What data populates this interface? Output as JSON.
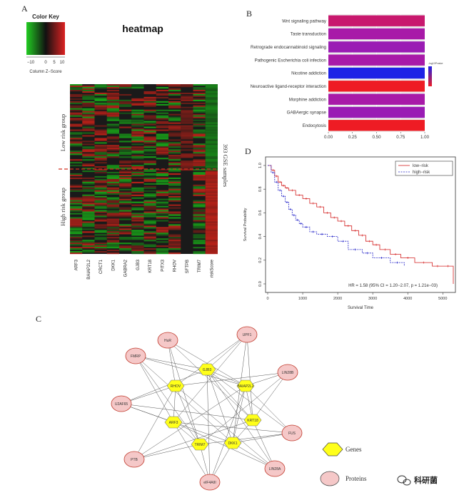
{
  "panels": {
    "a": "A",
    "b": "B",
    "c": "C",
    "d": "D"
  },
  "heatmap": {
    "title": "heatmap",
    "color_key_title": "Color Key",
    "color_key_ticks": [
      "−10",
      "0",
      "5",
      "10"
    ],
    "color_key_label": "Column Z−Score",
    "colors": {
      "low": "#22cc22",
      "mid": "#111111",
      "high": "#dd2222"
    },
    "row_groups": [
      "Low risk group",
      "High risk group"
    ],
    "side_label": "393 GSE samples",
    "columns": [
      "ARF3",
      "BAIAP2L2",
      "CRCT1",
      "DKK1",
      "GABRA2",
      "GJB3",
      "KRT18",
      "PITX3",
      "RHOV",
      "SFTPB",
      "TRIM7",
      "riskScore"
    ]
  },
  "enrichment": {
    "categories": [
      "Wnt signaling pathway",
      "Taste transduction",
      "Retrograde endocannabinoid signaling",
      "Pathogenic Escherichia coli infection",
      "Nicotine addiction",
      "Neuroactive ligand-receptor interaction",
      "Morphine addiction",
      "GABAergic synapse",
      "Endocytosis"
    ],
    "values": [
      1,
      1,
      1,
      1,
      1,
      1,
      1,
      1,
      1
    ],
    "bar_colors": [
      "#c8186e",
      "#a81aa8",
      "#9a1cb4",
      "#a81aa8",
      "#1e22e6",
      "#ee1c24",
      "#a81aa8",
      "#9a1cb4",
      "#ee1c24"
    ],
    "x_ticks": [
      "0.00",
      "0.25",
      "0.50",
      "0.75",
      "1.00"
    ],
    "legend_title": "-log10Pvalue",
    "legend_colors": [
      "#1e22e6",
      "#ee1c24"
    ]
  },
  "network": {
    "genes": [
      "GJB3",
      "RHOV",
      "BAIAP2L2",
      "ARF3",
      "KRT18",
      "TRIM7",
      "DKK1"
    ],
    "proteins": [
      "HuR",
      "UPF1",
      "FMRP",
      "LIN28B",
      "U2AF65",
      "FUS",
      "PTB",
      "LIN28A",
      "eIF4AIII"
    ],
    "legend": {
      "genes": "Genes",
      "proteins": "Proteins"
    },
    "gene_color": "#ffff1a",
    "protein_color": "#f5c8c8"
  },
  "survival": {
    "legend": [
      "low−risk",
      "high−risk"
    ],
    "colors": {
      "low": "#d42222",
      "high": "#2222c8"
    },
    "x_label": "Survival Time",
    "y_label": "Survival Probability",
    "x_ticks": [
      "0",
      "1000",
      "2000",
      "3000",
      "4000",
      "5000"
    ],
    "y_ticks": [
      "0.0",
      "0.2",
      "0.4",
      "0.6",
      "0.8",
      "1.0"
    ],
    "annotation": "HR = 1.58 (95% CI = 1.20−2.07, p = 1.21e−03)"
  },
  "chart_data": [
    {
      "type": "bar",
      "orientation": "horizontal",
      "categories": [
        "Wnt signaling pathway",
        "Taste transduction",
        "Retrograde endocannabinoid signaling",
        "Pathogenic Escherichia coli infection",
        "Nicotine addiction",
        "Neuroactive ligand-receptor interaction",
        "Morphine addiction",
        "GABAergic synapse",
        "Endocytosis"
      ],
      "values": [
        1,
        1,
        1,
        1,
        1,
        1,
        1,
        1,
        1
      ],
      "xlim": [
        0,
        1
      ],
      "xticks": [
        0,
        0.25,
        0.5,
        0.75,
        1.0
      ]
    },
    {
      "type": "line",
      "xlabel": "Survival Time",
      "ylabel": "Survival Probability",
      "xlim": [
        0,
        5300
      ],
      "ylim": [
        0,
        1
      ],
      "series": [
        {
          "name": "low−risk",
          "x": [
            0,
            100,
            200,
            300,
            400,
            500,
            600,
            800,
            1000,
            1200,
            1400,
            1600,
            1800,
            2000,
            2200,
            2400,
            2600,
            2800,
            3000,
            3200,
            3500,
            3800,
            4200,
            4700,
            5000,
            5300
          ],
          "y": [
            1.0,
            0.96,
            0.91,
            0.86,
            0.83,
            0.81,
            0.79,
            0.75,
            0.72,
            0.68,
            0.65,
            0.6,
            0.56,
            0.53,
            0.49,
            0.45,
            0.41,
            0.36,
            0.33,
            0.29,
            0.25,
            0.22,
            0.18,
            0.15,
            0.15,
            0.0
          ]
        },
        {
          "name": "high−risk",
          "x": [
            0,
            100,
            200,
            300,
            400,
            500,
            600,
            700,
            800,
            900,
            1000,
            1200,
            1400,
            1700,
            2000,
            2300,
            2700,
            3000,
            3500,
            3900
          ],
          "y": [
            1.0,
            0.94,
            0.86,
            0.79,
            0.74,
            0.69,
            0.63,
            0.58,
            0.54,
            0.51,
            0.48,
            0.44,
            0.42,
            0.4,
            0.36,
            0.29,
            0.26,
            0.22,
            0.18,
            0.15
          ]
        }
      ]
    }
  ]
}
